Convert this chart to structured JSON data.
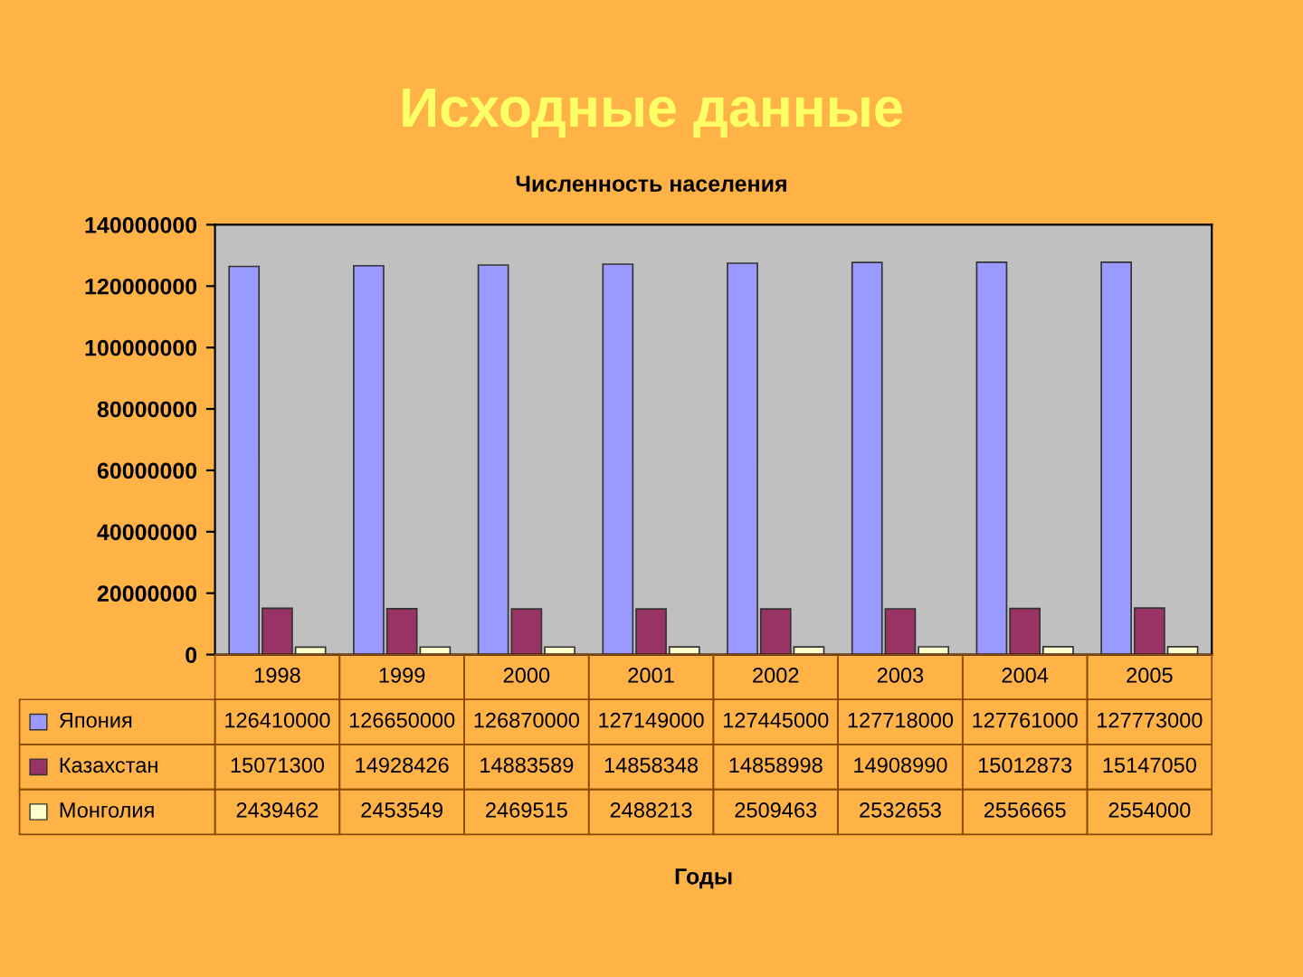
{
  "chart_data": {
    "type": "bar",
    "title": "Исходные данные",
    "subtitle": "Численность населения",
    "annotations": [
      "Годы"
    ],
    "categories": [
      "1998",
      "1999",
      "2000",
      "2001",
      "2002",
      "2003",
      "2004",
      "2005"
    ],
    "series": [
      {
        "name": "Япония",
        "color": "#9999ff",
        "values": [
          126410000,
          126650000,
          126870000,
          127149000,
          127445000,
          127718000,
          127761000,
          127773000
        ]
      },
      {
        "name": "Казахстан",
        "color": "#993366",
        "values": [
          15071300,
          14928426,
          14883589,
          14858348,
          14858998,
          14908990,
          15012873,
          15147050
        ]
      },
      {
        "name": "Монголия",
        "color": "#ffffcc",
        "values": [
          2439462,
          2453549,
          2469515,
          2488213,
          2509463,
          2532653,
          2556665,
          2554000
        ]
      }
    ],
    "ylim": [
      0,
      140000000
    ],
    "yticks": [
      0,
      20000000,
      40000000,
      60000000,
      80000000,
      100000000,
      120000000,
      140000000
    ],
    "grid": false,
    "legend": "bottom",
    "data_labels": true
  }
}
